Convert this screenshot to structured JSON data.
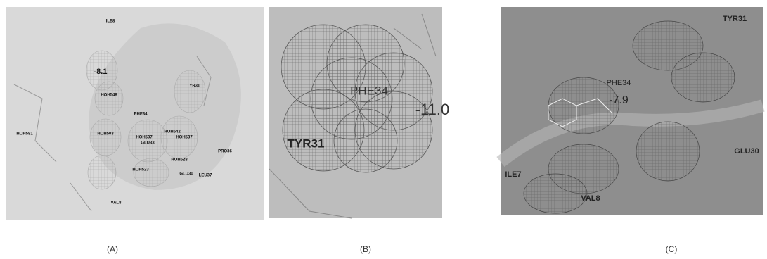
{
  "panels": [
    {
      "caption": "(A)",
      "labels": [
        "ILE8",
        "-8.1",
        "HOH548",
        "TYR31",
        "PHE34",
        "HOH581",
        "HOH503",
        "HOH507",
        "GLU33",
        "HOH542",
        "HOH537",
        "HOH528",
        "HOH523",
        "GLU30",
        "LEU37",
        "PRO36",
        "VAL8"
      ]
    },
    {
      "caption": "(B)",
      "labels": [
        "PHE34",
        "-11.0",
        "TYR31"
      ]
    },
    {
      "caption": "(C)",
      "labels": [
        "TYR31",
        "PHE34",
        "-7.9",
        "GLU30",
        "ILE7",
        "VAL8"
      ]
    }
  ]
}
